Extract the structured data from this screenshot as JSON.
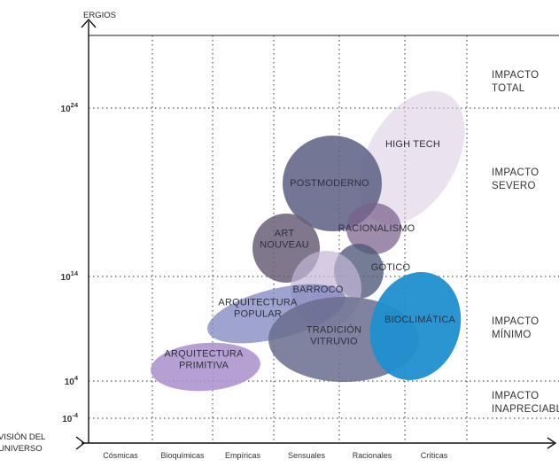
{
  "y_axis": {
    "title": "ERGIOS",
    "ticks": [
      {
        "base": "10",
        "exp": "24"
      },
      {
        "base": "10",
        "exp": "14"
      },
      {
        "base": "10",
        "exp": "4"
      },
      {
        "base": "10",
        "exp": "-4"
      }
    ]
  },
  "x_axis": {
    "title_lines": [
      "VISIÓN DEL",
      "UNIVERSO"
    ],
    "categories": [
      "Cósmicas",
      "Bioquímicas",
      "Empíricas",
      "Sensuales",
      "Racionales",
      "Críticas"
    ]
  },
  "impact_zones": [
    {
      "lines": [
        "IMPACTO",
        "TOTAL"
      ]
    },
    {
      "lines": [
        "IMPACTO",
        "SEVERO"
      ]
    },
    {
      "lines": [
        "IMPACTO",
        "MÍNIMO"
      ]
    },
    {
      "lines": [
        "IMPACTO",
        "INAPRECIABLE"
      ]
    }
  ],
  "styles": [
    {
      "lines": [
        "HIGH TECH"
      ],
      "color": "#d9cbe2"
    },
    {
      "lines": [
        "POSTMODERNO"
      ],
      "color": "#5b5f83"
    },
    {
      "lines": [
        "RACIONALISMO"
      ],
      "color": "#7a5f8c"
    },
    {
      "lines": [
        "ART",
        "NOUVEAU"
      ],
      "color": "#6a5f78"
    },
    {
      "lines": [
        "GÓTICO"
      ],
      "color": "#4e5878"
    },
    {
      "lines": [
        "BARROCO"
      ],
      "color": "#c3b7d6"
    },
    {
      "lines": [
        "ARQUITECTURA",
        "POPULAR"
      ],
      "color": "#7d84bf"
    },
    {
      "lines": [
        "TRADICIÓN",
        "VITRUVIO"
      ],
      "color": "#686d8e"
    },
    {
      "lines": [
        "BIOCLIMÁTICA"
      ],
      "color": "#1f8fcf"
    },
    {
      "lines": [
        "ARQUITECTURA",
        "PRIMITIVA"
      ],
      "color": "#a98fcb"
    }
  ]
}
